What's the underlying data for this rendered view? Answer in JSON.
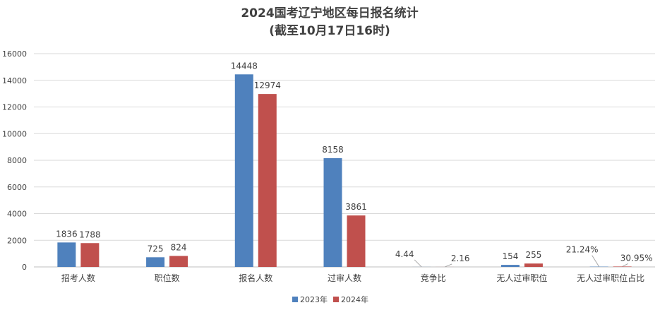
{
  "chart_data": {
    "type": "bar",
    "title": "2024国考辽宁地区每日报名统计",
    "subtitle": "(截至10月17日16时)",
    "categories": [
      "招考人数",
      "职位数",
      "报名人数",
      "过审人数",
      "竞争比",
      "无人过审职位",
      "无人过审职位占比"
    ],
    "series": [
      {
        "name": "2023年",
        "color": "#4f81bd",
        "values": [
          1836,
          725,
          14448,
          8158,
          4.44,
          154,
          21.24
        ],
        "labels": [
          "1836",
          "725",
          "14448",
          "8158",
          "4.44",
          "154",
          "21.24%"
        ]
      },
      {
        "name": "2024年",
        "color": "#c0504d",
        "values": [
          1788,
          824,
          12974,
          3861,
          2.16,
          255,
          30.95
        ],
        "labels": [
          "1788",
          "824",
          "12974",
          "3861",
          "2.16",
          "255",
          "30.95%"
        ]
      }
    ],
    "yticks": [
      "0",
      "2000",
      "4000",
      "6000",
      "8000",
      "10000",
      "12000",
      "14000",
      "16000"
    ],
    "ylim": [
      0,
      16000
    ],
    "grid": true,
    "legend": "bottom"
  }
}
